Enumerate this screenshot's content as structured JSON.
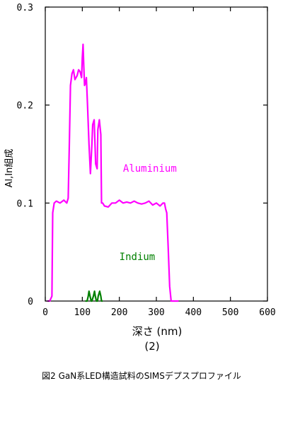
{
  "chart_data": {
    "type": "line",
    "subtitle": "(2)",
    "xlabel": "深さ (nm)",
    "ylabel": "Al,In組成",
    "xlim": [
      0,
      600
    ],
    "ylim": [
      0,
      0.3
    ],
    "x_ticks": [
      "0",
      "100",
      "200",
      "300",
      "400",
      "500",
      "600"
    ],
    "y_ticks": [
      "0",
      "0.1",
      "0.2",
      "0.3"
    ],
    "y_tick_values": [
      0,
      0.1,
      0.2,
      0.3
    ],
    "x_tick_values": [
      0,
      100,
      200,
      300,
      400,
      500,
      600
    ],
    "grid": false,
    "annotations": [
      {
        "text": "Aluminium",
        "color": "#ff00ff",
        "x": 210,
        "y": 0.132
      },
      {
        "text": "Indium",
        "color": "#008000",
        "x": 200,
        "y": 0.042
      }
    ],
    "series": [
      {
        "name": "Aluminium",
        "color": "#ff00ff",
        "x": [
          5,
          12,
          18,
          20,
          24,
          30,
          40,
          50,
          58,
          62,
          65,
          68,
          72,
          76,
          80,
          86,
          90,
          94,
          98,
          100,
          102,
          104,
          106,
          108,
          111,
          114,
          118,
          122,
          126,
          128,
          132,
          136,
          140,
          142,
          146,
          150,
          152,
          155,
          160,
          170,
          180,
          190,
          200,
          210,
          220,
          230,
          240,
          250,
          260,
          270,
          280,
          290,
          300,
          310,
          318,
          322,
          325,
          328,
          332,
          336,
          340,
          350,
          360
        ],
        "y": [
          0.0,
          0.0,
          0.005,
          0.09,
          0.1,
          0.102,
          0.1,
          0.103,
          0.1,
          0.105,
          0.16,
          0.22,
          0.232,
          0.236,
          0.226,
          0.23,
          0.236,
          0.234,
          0.228,
          0.248,
          0.262,
          0.24,
          0.22,
          0.222,
          0.228,
          0.2,
          0.16,
          0.13,
          0.16,
          0.18,
          0.185,
          0.14,
          0.135,
          0.175,
          0.185,
          0.17,
          0.1,
          0.1,
          0.097,
          0.096,
          0.1,
          0.1,
          0.103,
          0.1,
          0.101,
          0.1,
          0.102,
          0.1,
          0.099,
          0.1,
          0.102,
          0.098,
          0.1,
          0.097,
          0.1,
          0.1,
          0.094,
          0.09,
          0.055,
          0.015,
          0.0,
          0.0,
          0.0
        ]
      },
      {
        "name": "Indium",
        "color": "#008000",
        "x": [
          108,
          113,
          116,
          118,
          121,
          124,
          126,
          130,
          133,
          135,
          138,
          141,
          143,
          147,
          150,
          152,
          155
        ],
        "y": [
          0.0,
          0.0,
          0.005,
          0.01,
          0.005,
          0.0,
          0.0,
          0.005,
          0.01,
          0.005,
          0.0,
          0.0,
          0.005,
          0.01,
          0.005,
          0.0,
          0.0
        ]
      }
    ]
  },
  "caption": "図2 GaN系LED構造試料のSIMSデプスプロファイル"
}
